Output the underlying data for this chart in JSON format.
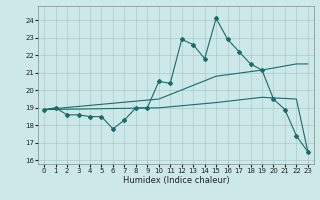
{
  "xlabel": "Humidex (Indice chaleur)",
  "background_color": "#cde8e8",
  "grid_color": "#aacccc",
  "line_color": "#1a6b6b",
  "xlim": [
    -0.5,
    23.5
  ],
  "ylim": [
    15.8,
    24.8
  ],
  "yticks": [
    16,
    17,
    18,
    19,
    20,
    21,
    22,
    23,
    24
  ],
  "xticks": [
    0,
    1,
    2,
    3,
    4,
    5,
    6,
    7,
    8,
    9,
    10,
    11,
    12,
    13,
    14,
    15,
    16,
    17,
    18,
    19,
    20,
    21,
    22,
    23
  ],
  "main_line_x": [
    0,
    1,
    2,
    3,
    4,
    5,
    6,
    7,
    8,
    9,
    10,
    11,
    12,
    13,
    14,
    15,
    16,
    17,
    18,
    19,
    20,
    21,
    22,
    23
  ],
  "main_line_y": [
    18.9,
    19.0,
    18.6,
    18.6,
    18.5,
    18.5,
    17.8,
    18.3,
    19.0,
    19.0,
    20.5,
    20.4,
    22.9,
    22.6,
    21.8,
    24.1,
    22.9,
    22.2,
    21.5,
    21.15,
    19.5,
    18.9,
    17.4,
    16.5
  ],
  "upper_line_x": [
    0,
    10,
    15,
    19,
    22,
    23
  ],
  "upper_line_y": [
    18.9,
    19.5,
    20.8,
    21.15,
    21.5,
    21.5
  ],
  "lower_line_x": [
    0,
    10,
    15,
    19,
    22,
    23
  ],
  "lower_line_y": [
    18.9,
    19.0,
    19.3,
    19.6,
    19.5,
    16.5
  ]
}
